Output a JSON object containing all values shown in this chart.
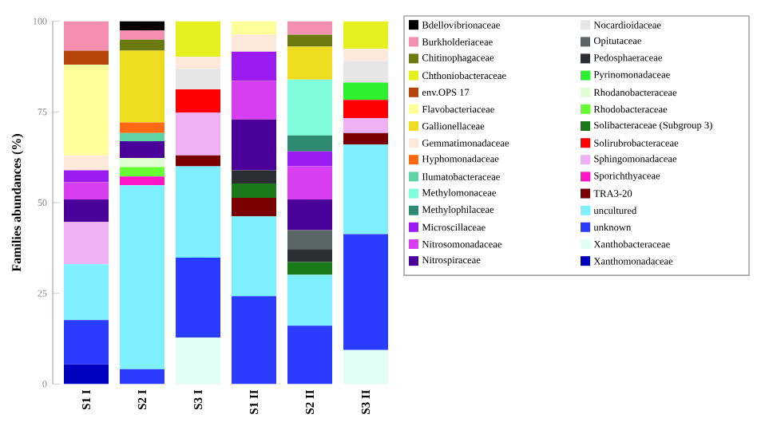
{
  "chart_data": {
    "type": "bar",
    "stacked": true,
    "ylabel": "Families abundances (%)",
    "categories": [
      "S1 I",
      "S2 I",
      "S3 I",
      "S1 II",
      "S2 II",
      "S3 II"
    ],
    "ylim": [
      0,
      100
    ],
    "yticks": [
      0,
      25,
      50,
      75,
      100
    ],
    "legend": "right",
    "grid": false,
    "series": [
      {
        "name": "Xanthomonadaceae",
        "color": "#0000c0",
        "values": [
          5.4,
          0,
          0,
          0,
          0,
          0
        ]
      },
      {
        "name": "Xanthobacteraceae",
        "color": "#e0fff5",
        "values": [
          0,
          0,
          12.8,
          0,
          0,
          9.4
        ]
      },
      {
        "name": "unknown",
        "color": "#2a3cff",
        "values": [
          12.2,
          4.1,
          22.0,
          24.2,
          16.1,
          31.9
        ]
      },
      {
        "name": "uncultured",
        "color": "#7ff0ff",
        "values": [
          15.4,
          50.7,
          25.2,
          22.0,
          14.0,
          24.7
        ]
      },
      {
        "name": "TRA3-20",
        "color": "#7a0000",
        "values": [
          0,
          0,
          3.0,
          5.1,
          0,
          3.2
        ]
      },
      {
        "name": "Sporichthyaceae",
        "color": "#ff14c8",
        "values": [
          0,
          2.4,
          0,
          0,
          0,
          0
        ]
      },
      {
        "name": "Sphingomonadaceae",
        "color": "#f0b0f5",
        "values": [
          11.7,
          0,
          11.8,
          0,
          0,
          4.1
        ]
      },
      {
        "name": "Solirubrobacteraceae",
        "color": "#ff0000",
        "values": [
          0,
          0,
          6.4,
          0,
          0,
          5.0
        ]
      },
      {
        "name": "Solibacteraceae (Subgroup 3)",
        "color": "#1a7a1a",
        "values": [
          0,
          0,
          0,
          4.0,
          3.5,
          0
        ]
      },
      {
        "name": "Rhodobacteraceae",
        "color": "#66ff33",
        "values": [
          0,
          2.6,
          0,
          0,
          0,
          0
        ]
      },
      {
        "name": "Rhodanobacteraceae",
        "color": "#e0ffd0",
        "values": [
          0,
          2.5,
          0,
          0,
          0,
          0
        ]
      },
      {
        "name": "Pyrinomonadaceae",
        "color": "#2ef02e",
        "values": [
          0,
          0,
          0,
          0,
          0,
          4.8
        ]
      },
      {
        "name": "Pedosphaeraceae",
        "color": "#2b2f33",
        "values": [
          0,
          0,
          0,
          3.6,
          3.6,
          0
        ]
      },
      {
        "name": "Opitutaceae",
        "color": "#5a6666",
        "values": [
          0,
          0,
          0,
          0,
          5.2,
          0
        ]
      },
      {
        "name": "Nocardioidaceae",
        "color": "#e6e6e6",
        "values": [
          0,
          0,
          5.6,
          0,
          0,
          5.9
        ]
      },
      {
        "name": "Nitrospiraceae",
        "color": "#4b0099",
        "values": [
          6.2,
          4.6,
          0,
          14.0,
          8.5,
          0
        ]
      },
      {
        "name": "Nitrosomonadaceae",
        "color": "#d63ef0",
        "values": [
          4.7,
          0,
          0,
          10.7,
          9.1,
          0
        ]
      },
      {
        "name": "Microscillaceae",
        "color": "#9b1cf0",
        "values": [
          3.3,
          0,
          0,
          8.0,
          4.1,
          0
        ]
      },
      {
        "name": "Methylophilaceae",
        "color": "#2e8b73",
        "values": [
          0,
          0,
          0,
          0,
          4.4,
          0
        ]
      },
      {
        "name": "Methylomonaceae",
        "color": "#7ffddc",
        "values": [
          0,
          0,
          0,
          0,
          15.4,
          0
        ]
      },
      {
        "name": "Ilumatobacteraceae",
        "color": "#5fd3a4",
        "values": [
          0,
          2.3,
          0,
          0,
          0,
          0
        ]
      },
      {
        "name": "Hyphomonadaceae",
        "color": "#ff6a13",
        "values": [
          0,
          2.9,
          0,
          0,
          0,
          0
        ]
      },
      {
        "name": "Gemmatimonadaceae",
        "color": "#fde9dc",
        "values": [
          4.1,
          0,
          3.4,
          4.7,
          0,
          3.4
        ]
      },
      {
        "name": "Gallionellaceae",
        "color": "#f0dc1e",
        "values": [
          0,
          19.8,
          0,
          0,
          9.1,
          0
        ]
      },
      {
        "name": "Flavobacteriaceae",
        "color": "#ffff99",
        "values": [
          25.0,
          0,
          0,
          3.7,
          0,
          0
        ]
      },
      {
        "name": "env.OPS 17",
        "color": "#b5450a",
        "values": [
          3.9,
          0,
          0,
          0,
          0,
          0
        ]
      },
      {
        "name": "Chthoniobacteraceae",
        "color": "#e6f01e",
        "values": [
          0,
          0,
          9.8,
          0,
          0,
          7.6
        ]
      },
      {
        "name": "Chitinophagaceae",
        "color": "#6b7a0f",
        "values": [
          0,
          3.0,
          0,
          0,
          3.3,
          0
        ]
      },
      {
        "name": "Burkholderiaceae",
        "color": "#f48fb1",
        "values": [
          8.1,
          2.6,
          0,
          0,
          3.7,
          0
        ]
      },
      {
        "name": "Bdellovibrionaceae",
        "color": "#000000",
        "values": [
          0,
          2.5,
          0,
          0,
          0,
          0
        ]
      }
    ]
  }
}
